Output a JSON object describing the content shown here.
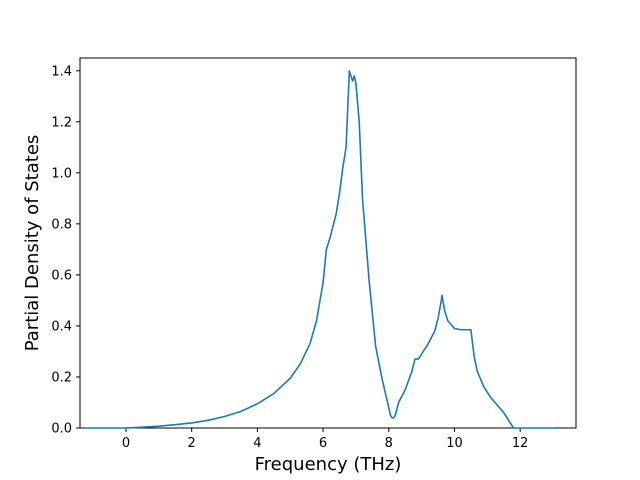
{
  "chart_data": {
    "type": "line",
    "title": "",
    "xlabel": "Frequency (THz)",
    "ylabel": "Partial Density of States",
    "xlim": [
      -1.4,
      13.7
    ],
    "ylim": [
      0.0,
      1.45
    ],
    "xticks": [
      0,
      2,
      4,
      6,
      8,
      10,
      12
    ],
    "yticks": [
      0.0,
      0.2,
      0.4,
      0.6,
      0.8,
      1.0,
      1.2,
      1.4
    ],
    "xtick_labels": [
      "0",
      "2",
      "4",
      "6",
      "8",
      "10",
      "12"
    ],
    "ytick_labels": [
      "0.0",
      "0.2",
      "0.4",
      "0.6",
      "0.8",
      "1.0",
      "1.2",
      "1.4"
    ],
    "grid": false,
    "series": [
      {
        "color": "#1f77b4",
        "x": [
          -1.2,
          -0.5,
          0.0,
          0.5,
          1.0,
          1.5,
          2.0,
          2.5,
          3.0,
          3.5,
          4.0,
          4.5,
          5.0,
          5.3,
          5.6,
          5.8,
          6.0,
          6.1,
          6.2,
          6.4,
          6.5,
          6.6,
          6.7,
          6.75,
          6.8,
          6.82,
          6.9,
          6.95,
          7.0,
          7.1,
          7.2,
          7.4,
          7.6,
          7.8,
          8.0,
          8.05,
          8.1,
          8.15,
          8.2,
          8.3,
          8.5,
          8.7,
          8.8,
          8.9,
          9.0,
          9.2,
          9.4,
          9.5,
          9.6,
          9.62,
          9.7,
          9.8,
          10.0,
          10.2,
          10.5,
          10.6,
          10.7,
          10.9,
          11.1,
          11.3,
          11.5,
          11.7,
          11.8,
          12.0,
          12.5,
          13.0
        ],
        "y": [
          0.0,
          0.0,
          0.0,
          0.003,
          0.007,
          0.013,
          0.02,
          0.03,
          0.045,
          0.065,
          0.095,
          0.135,
          0.195,
          0.25,
          0.33,
          0.42,
          0.57,
          0.7,
          0.74,
          0.84,
          0.92,
          1.02,
          1.1,
          1.25,
          1.4,
          1.39,
          1.36,
          1.38,
          1.35,
          1.2,
          0.9,
          0.58,
          0.32,
          0.19,
          0.08,
          0.05,
          0.04,
          0.04,
          0.05,
          0.1,
          0.15,
          0.22,
          0.27,
          0.27,
          0.29,
          0.33,
          0.38,
          0.43,
          0.5,
          0.52,
          0.46,
          0.42,
          0.39,
          0.385,
          0.385,
          0.28,
          0.22,
          0.16,
          0.12,
          0.09,
          0.06,
          0.02,
          0.0,
          0.0,
          0.0,
          0.0
        ]
      }
    ]
  }
}
